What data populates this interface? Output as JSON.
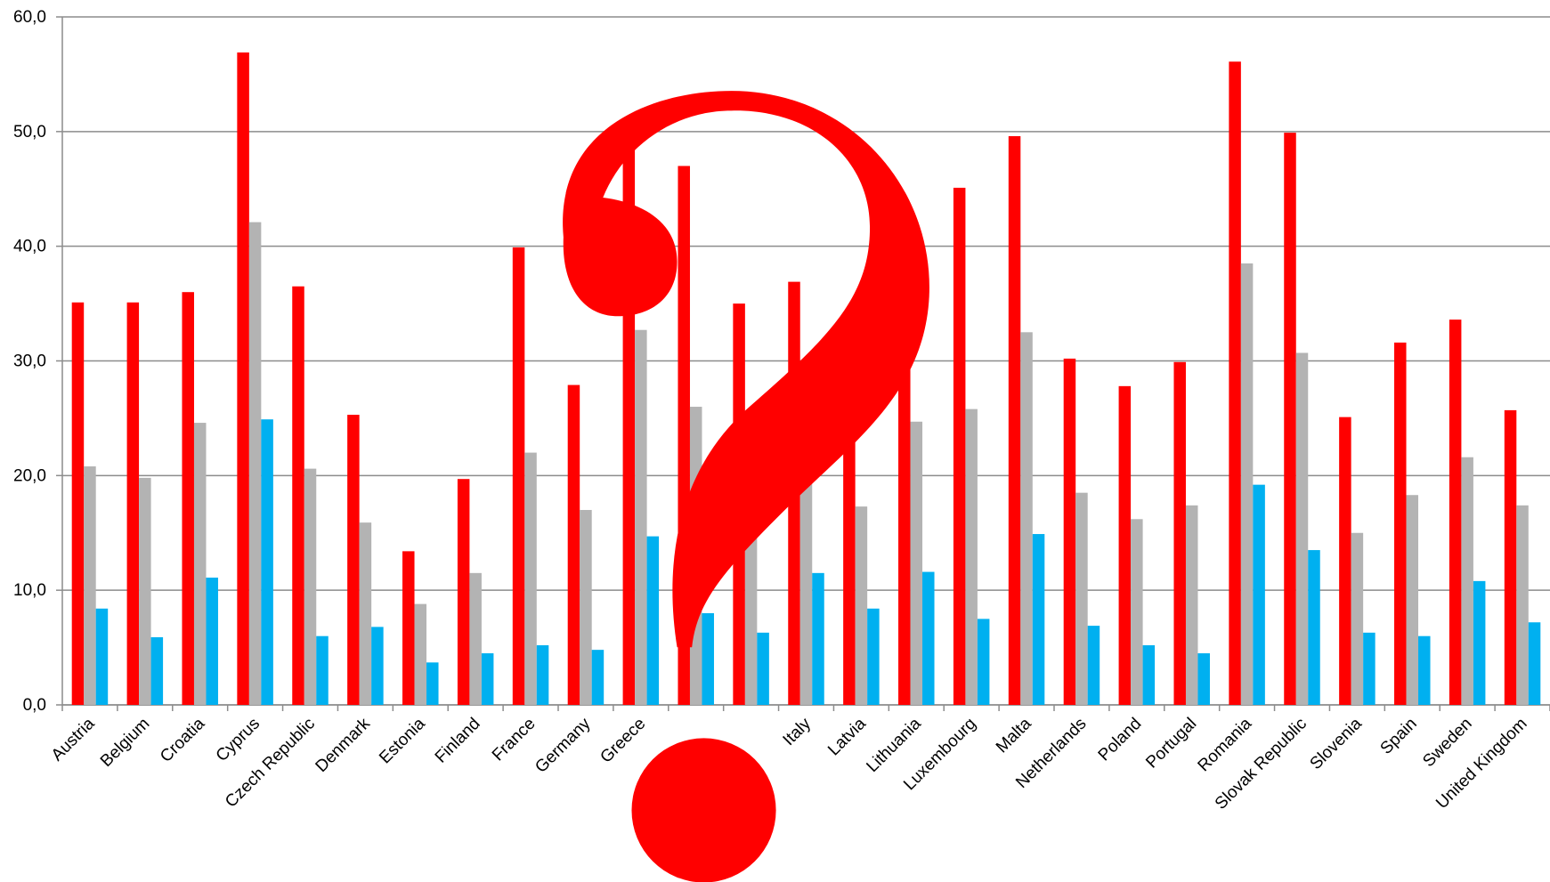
{
  "chart_data": {
    "type": "bar",
    "categories": [
      "Austria",
      "Belgium",
      "Croatia",
      "Cyprus",
      "Czech Republic",
      "Denmark",
      "Estonia",
      "Finland",
      "France",
      "Germany",
      "Greece",
      null,
      null,
      "Italy",
      "Latvia",
      "Lithuania",
      "Luxembourg",
      "Malta",
      "Netherlands",
      "Poland",
      "Portugal",
      "Romania",
      "Slovak Republic",
      "Slovenia",
      "Spain",
      "Sweden",
      "United Kingdom"
    ],
    "series": [
      {
        "color": "#ff0000",
        "values": [
          35.1,
          35.1,
          36.0,
          56.9,
          36.5,
          25.3,
          13.4,
          19.7,
          39.9,
          27.9,
          48.5,
          47.0,
          35.0,
          36.9,
          30.0,
          31.0,
          45.1,
          49.6,
          30.2,
          27.8,
          29.9,
          56.1,
          49.9,
          25.1,
          31.6,
          33.6,
          25.7
        ]
      },
      {
        "color": "#b3b3b3",
        "values": [
          20.8,
          19.8,
          24.6,
          42.1,
          20.6,
          15.9,
          8.8,
          11.5,
          22.0,
          17.0,
          32.7,
          26.0,
          15.5,
          19.5,
          17.3,
          24.7,
          25.8,
          32.5,
          18.5,
          16.2,
          17.4,
          38.5,
          30.7,
          15.0,
          18.3,
          21.6,
          17.4
        ]
      },
      {
        "color": "#00b0f0",
        "values": [
          8.4,
          5.9,
          11.1,
          24.9,
          6.0,
          6.8,
          3.7,
          4.5,
          5.2,
          4.8,
          14.7,
          8.0,
          6.3,
          11.5,
          8.4,
          11.6,
          7.5,
          14.9,
          6.9,
          5.2,
          4.5,
          19.2,
          13.5,
          6.3,
          6.0,
          10.8,
          7.2
        ]
      }
    ],
    "ylim": [
      0,
      60
    ],
    "yticks": [
      {
        "value": 0,
        "label": "0,0"
      },
      {
        "value": 10,
        "label": "10,0"
      },
      {
        "value": 20,
        "label": "20,0"
      },
      {
        "value": 30,
        "label": "30,0"
      },
      {
        "value": 40,
        "label": "40,0"
      },
      {
        "value": 50,
        "label": "50,0"
      },
      {
        "value": 60,
        "label": "60,0"
      }
    ],
    "grid": true
  }
}
